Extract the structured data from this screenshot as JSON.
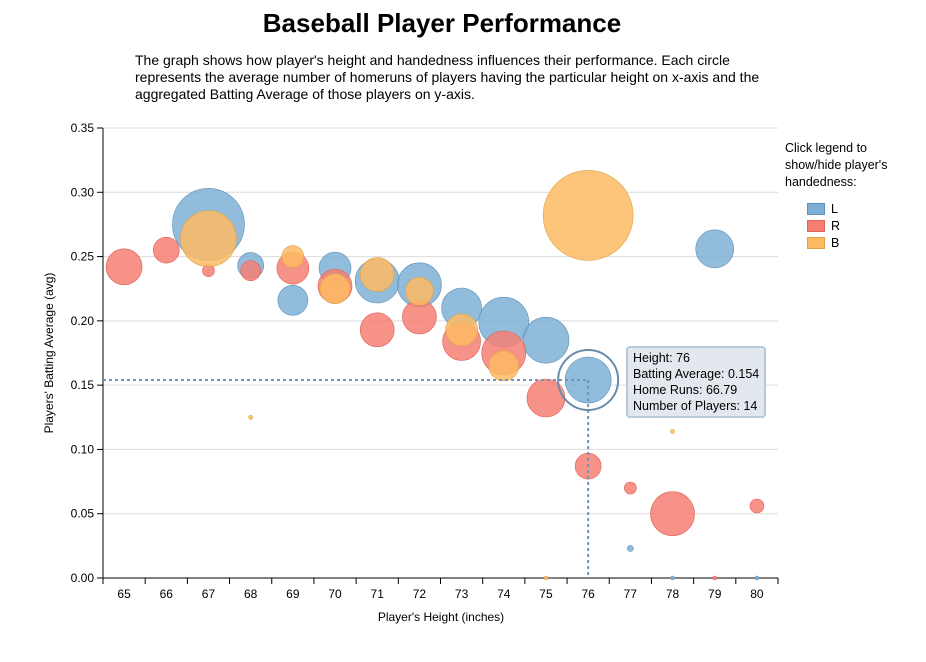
{
  "header": {
    "title": "Baseball Player Performance",
    "subtitle": "The graph shows how player's height and handedness influences their performance. Each circle represents the average number of homeruns of players having the particular height on x-axis and the aggregated Batting Average of those players on y-axis."
  },
  "legend": {
    "title": "Click legend to show/hide player's handedness:",
    "items": [
      {
        "label": "L",
        "color": "#7eb0d5",
        "stroke": "#5f8fb6"
      },
      {
        "label": "R",
        "color": "#f57f73",
        "stroke": "#e06055"
      },
      {
        "label": "B",
        "color": "#fdbb63",
        "stroke": "#e0a045"
      }
    ]
  },
  "tooltip": {
    "height": "Height: 76",
    "batting_average": "Batting Average: 0.154",
    "home_runs": "Home Runs: 66.79",
    "players": "Number of Players: 14"
  },
  "chart_data": {
    "type": "scatter",
    "xlabel": "Player's Height (inches)",
    "ylabel": "Players' Batting Average (avg)",
    "x_categories": [
      65,
      66,
      67,
      68,
      69,
      70,
      71,
      72,
      73,
      74,
      75,
      76,
      77,
      78,
      79,
      80
    ],
    "ylim": [
      0,
      0.35
    ],
    "yticks": [
      "0.00",
      "0.05",
      "0.10",
      "0.15",
      "0.20",
      "0.25",
      "0.30",
      "0.35"
    ],
    "grid": true,
    "legend_position": "right",
    "highlight": {
      "series": "L",
      "x": 76,
      "y": 0.154
    },
    "series": [
      {
        "name": "L",
        "points": [
          {
            "x": 67,
            "y": 0.275,
            "r": 36
          },
          {
            "x": 68,
            "y": 0.243,
            "r": 13
          },
          {
            "x": 69,
            "y": 0.216,
            "r": 15
          },
          {
            "x": 70,
            "y": 0.241,
            "r": 16
          },
          {
            "x": 71,
            "y": 0.231,
            "r": 22
          },
          {
            "x": 72,
            "y": 0.228,
            "r": 22
          },
          {
            "x": 73,
            "y": 0.21,
            "r": 20
          },
          {
            "x": 74,
            "y": 0.199,
            "r": 25
          },
          {
            "x": 75,
            "y": 0.185,
            "r": 23
          },
          {
            "x": 76,
            "y": 0.154,
            "r": 23
          },
          {
            "x": 77,
            "y": 0.023,
            "r": 3
          },
          {
            "x": 79,
            "y": 0.256,
            "r": 19
          },
          {
            "x": 78,
            "y": 0.0,
            "r": 2
          },
          {
            "x": 80,
            "y": 0.0,
            "r": 2
          }
        ]
      },
      {
        "name": "R",
        "points": [
          {
            "x": 65,
            "y": 0.242,
            "r": 18
          },
          {
            "x": 66,
            "y": 0.255,
            "r": 13
          },
          {
            "x": 67,
            "y": 0.239,
            "r": 6
          },
          {
            "x": 68,
            "y": 0.239,
            "r": 10
          },
          {
            "x": 69,
            "y": 0.241,
            "r": 16
          },
          {
            "x": 70,
            "y": 0.227,
            "r": 17
          },
          {
            "x": 71,
            "y": 0.193,
            "r": 17
          },
          {
            "x": 72,
            "y": 0.203,
            "r": 17
          },
          {
            "x": 73,
            "y": 0.184,
            "r": 19
          },
          {
            "x": 74,
            "y": 0.175,
            "r": 22
          },
          {
            "x": 75,
            "y": 0.14,
            "r": 19
          },
          {
            "x": 76,
            "y": 0.087,
            "r": 13
          },
          {
            "x": 77,
            "y": 0.07,
            "r": 6
          },
          {
            "x": 78,
            "y": 0.05,
            "r": 22
          },
          {
            "x": 80,
            "y": 0.056,
            "r": 7
          },
          {
            "x": 79,
            "y": 0.0,
            "r": 2
          }
        ]
      },
      {
        "name": "B",
        "points": [
          {
            "x": 67,
            "y": 0.264,
            "r": 28
          },
          {
            "x": 68,
            "y": 0.125,
            "r": 2
          },
          {
            "x": 69,
            "y": 0.25,
            "r": 11
          },
          {
            "x": 70,
            "y": 0.225,
            "r": 15
          },
          {
            "x": 71,
            "y": 0.236,
            "r": 17
          },
          {
            "x": 72,
            "y": 0.223,
            "r": 14
          },
          {
            "x": 73,
            "y": 0.193,
            "r": 16
          },
          {
            "x": 74,
            "y": 0.165,
            "r": 15
          },
          {
            "x": 75,
            "y": 0.0,
            "r": 2
          },
          {
            "x": 76,
            "y": 0.282,
            "r": 45
          },
          {
            "x": 78,
            "y": 0.114,
            "r": 2
          }
        ]
      }
    ]
  }
}
